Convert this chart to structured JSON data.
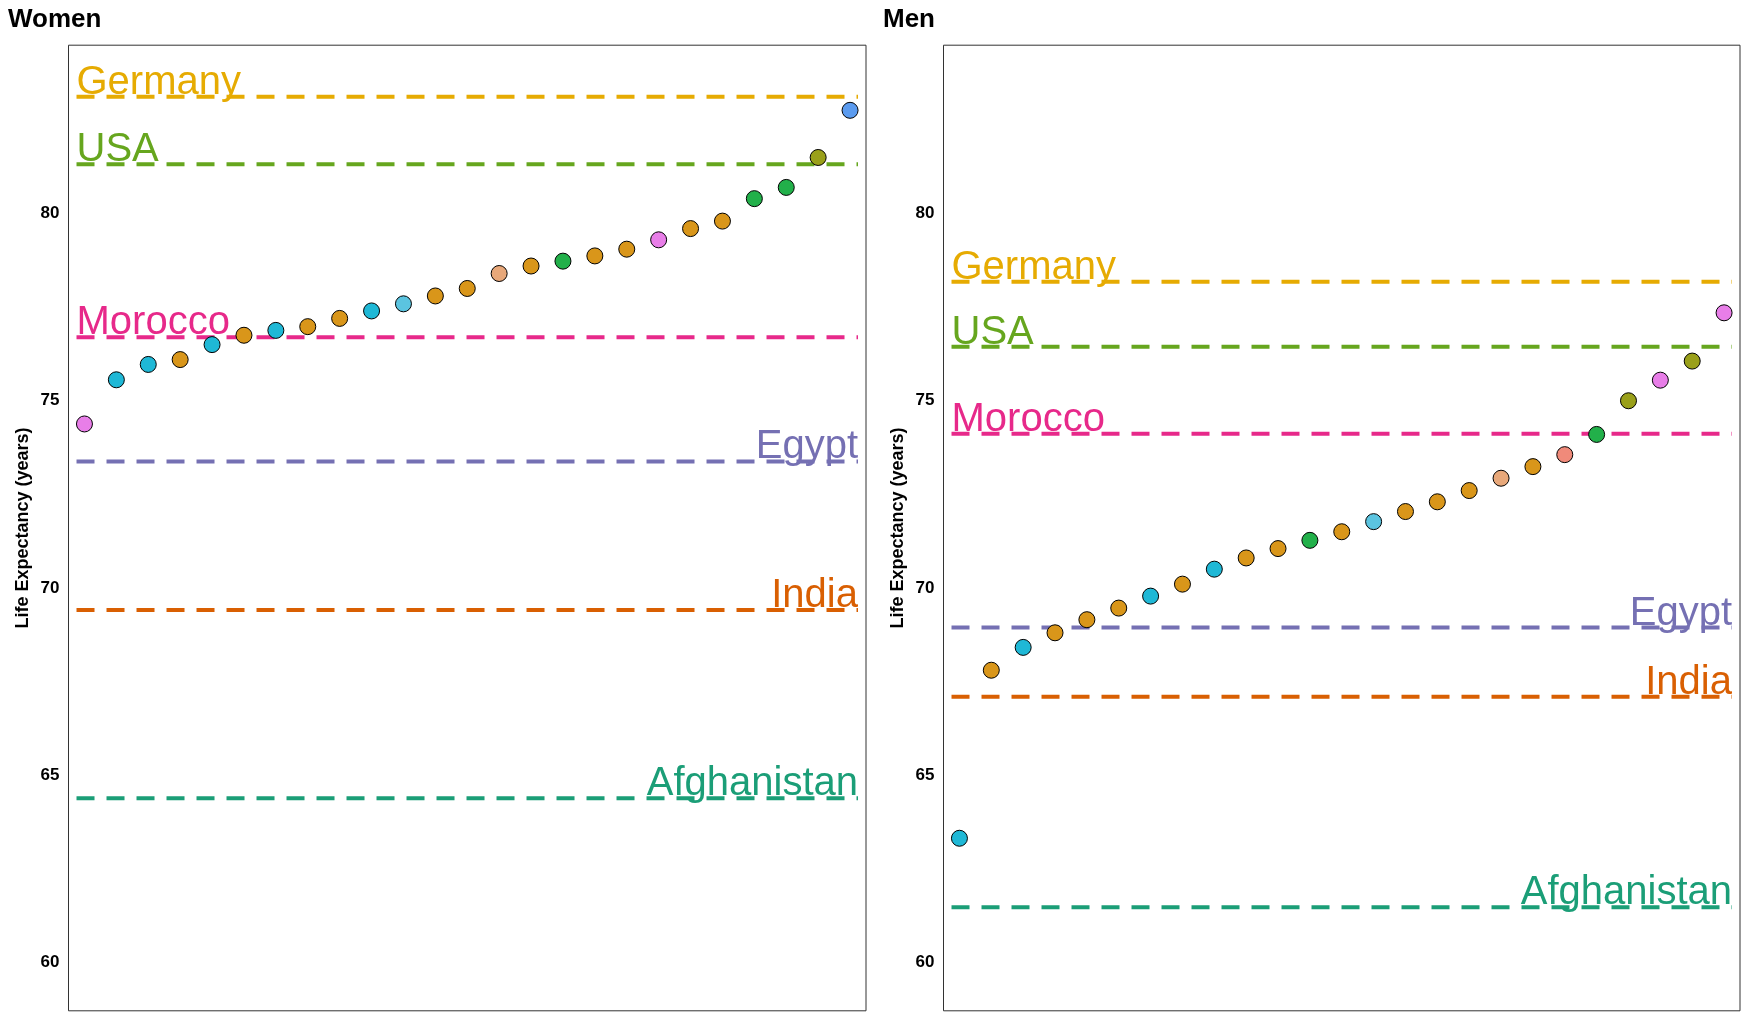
{
  "chart_data": [
    {
      "type": "scatter",
      "title": "Women",
      "ylabel": "Life Expectancy (years)",
      "categories": [
        null,
        null,
        null,
        null,
        null,
        null,
        null,
        null,
        null,
        null,
        null,
        null,
        null,
        null,
        null,
        null,
        null,
        null,
        null,
        null,
        null,
        null,
        null,
        null,
        null
      ],
      "ylim": [
        58.7,
        84.5
      ],
      "yticks": [
        60,
        65,
        70,
        75,
        80
      ],
      "tick_labels": "y",
      "grid": false,
      "legend": false,
      "marker": "circle",
      "series": [
        {
          "colors": [
            "#e87ee8",
            "#1fb8d6",
            "#1fb8d6",
            "#d9961a",
            "#1fb8d6",
            "#d9961a",
            "#1fb8d6",
            "#d9961a",
            "#d9961a",
            "#1fb8d6",
            "#5bc4e0",
            "#d9961a",
            "#d9961a",
            "#e8a87a",
            "#d9961a",
            "#22b04a",
            "#d9961a",
            "#d9961a",
            "#e87ee8",
            "#d9961a",
            "#d9961a",
            "#22b04a",
            "#22b04a",
            "#9aa01a",
            "#5b9bef"
          ],
          "values": [
            74.38,
            75.56,
            75.97,
            76.1,
            76.5,
            76.75,
            76.88,
            76.98,
            77.2,
            77.4,
            77.59,
            77.8,
            78.0,
            78.4,
            78.6,
            78.73,
            78.87,
            79.05,
            79.3,
            79.6,
            79.8,
            80.4,
            80.7,
            81.5,
            82.76
          ]
        }
      ],
      "ref_lines": [
        {
          "axis": "y",
          "value": 83.12,
          "label": "Germany",
          "color": "#e6ab02",
          "line_style": "dashed"
        },
        {
          "axis": "y",
          "value": 81.32,
          "label": "USA",
          "color": "#66a61e",
          "line_style": "dashed"
        },
        {
          "axis": "y",
          "value": 76.7,
          "label": "Morocco",
          "color": "#e7298a",
          "line_style": "dashed"
        },
        {
          "axis": "y",
          "value": 73.38,
          "label": "Egypt",
          "color": "#7570b3",
          "line_style": "dashed"
        },
        {
          "axis": "y",
          "value": 69.41,
          "label": "India",
          "color": "#d95f02",
          "line_style": "dashed"
        },
        {
          "axis": "y",
          "value": 64.38,
          "label": "Afghanistan",
          "color": "#1b9e77",
          "line_style": "dashed"
        }
      ]
    },
    {
      "type": "scatter",
      "title": "Men",
      "ylabel": "Life Expectancy (years)",
      "categories": [
        null,
        null,
        null,
        null,
        null,
        null,
        null,
        null,
        null,
        null,
        null,
        null,
        null,
        null,
        null,
        null,
        null,
        null,
        null,
        null,
        null,
        null,
        null,
        null,
        null
      ],
      "ylim": [
        58.7,
        84.5
      ],
      "yticks": [
        60,
        65,
        70,
        75,
        80
      ],
      "tick_labels": "y",
      "grid": false,
      "legend": false,
      "marker": "circle",
      "series": [
        {
          "colors": [
            "#1fb8d6",
            "#d9961a",
            "#1fb8d6",
            "#d9961a",
            "#d9961a",
            "#d9961a",
            "#1fb8d6",
            "#d9961a",
            "#1fb8d6",
            "#d9961a",
            "#d9961a",
            "#22b04a",
            "#d9961a",
            "#5bc4e0",
            "#d9961a",
            "#d9961a",
            "#d9961a",
            "#e8a87a",
            "#d9961a",
            "#f08a7a",
            "#22b04a",
            "#9aa01a",
            "#e87ee8",
            "#9aa01a",
            "#e87ee8"
          ],
          "values": [
            63.31,
            67.8,
            68.41,
            68.8,
            69.15,
            69.46,
            69.78,
            70.1,
            70.5,
            70.8,
            71.05,
            71.27,
            71.5,
            71.77,
            72.04,
            72.3,
            72.6,
            72.93,
            73.24,
            73.56,
            74.1,
            75.0,
            75.55,
            76.06,
            77.35
          ]
        }
      ],
      "ref_lines": [
        {
          "axis": "y",
          "value": 78.18,
          "label": "Germany",
          "color": "#e6ab02",
          "line_style": "dashed"
        },
        {
          "axis": "y",
          "value": 76.44,
          "label": "USA",
          "color": "#66a61e",
          "line_style": "dashed"
        },
        {
          "axis": "y",
          "value": 74.12,
          "label": "Morocco",
          "color": "#e7298a",
          "line_style": "dashed"
        },
        {
          "axis": "y",
          "value": 68.94,
          "label": "Egypt",
          "color": "#7570b3",
          "line_style": "dashed"
        },
        {
          "axis": "y",
          "value": 67.09,
          "label": "India",
          "color": "#d95f02",
          "line_style": "dashed"
        },
        {
          "axis": "y",
          "value": 61.47,
          "label": "Afghanistan",
          "color": "#1b9e77",
          "line_style": "dashed"
        }
      ]
    }
  ]
}
